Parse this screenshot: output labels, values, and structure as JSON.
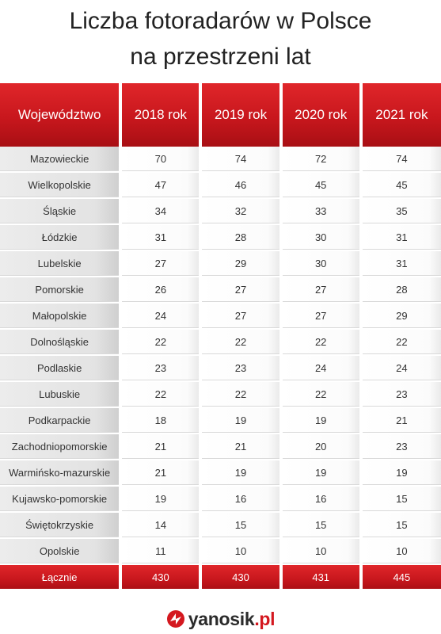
{
  "title": {
    "line1": "Liczba fotoradarów w Polsce",
    "line2": "na przestrzeni lat"
  },
  "table": {
    "headers": [
      "Województwo",
      "2018 rok",
      "2019 rok",
      "2020 rok",
      "2021 rok"
    ],
    "rows": [
      {
        "name": "Mazowieckie",
        "values": [
          "70",
          "74",
          "72",
          "74"
        ]
      },
      {
        "name": "Wielkopolskie",
        "values": [
          "47",
          "46",
          "45",
          "45"
        ]
      },
      {
        "name": "Śląskie",
        "values": [
          "34",
          "32",
          "33",
          "35"
        ]
      },
      {
        "name": "Łódzkie",
        "values": [
          "31",
          "28",
          "30",
          "31"
        ]
      },
      {
        "name": "Lubelskie",
        "values": [
          "27",
          "29",
          "30",
          "31"
        ]
      },
      {
        "name": "Pomorskie",
        "values": [
          "26",
          "27",
          "27",
          "28"
        ]
      },
      {
        "name": "Małopolskie",
        "values": [
          "24",
          "27",
          "27",
          "29"
        ]
      },
      {
        "name": "Dolnośląskie",
        "values": [
          "22",
          "22",
          "22",
          "22"
        ]
      },
      {
        "name": "Podlaskie",
        "values": [
          "23",
          "23",
          "24",
          "24"
        ]
      },
      {
        "name": "Lubuskie",
        "values": [
          "22",
          "22",
          "22",
          "23"
        ]
      },
      {
        "name": "Podkarpackie",
        "values": [
          "18",
          "19",
          "19",
          "21"
        ]
      },
      {
        "name": "Zachodniopomorskie",
        "values": [
          "21",
          "21",
          "20",
          "23"
        ]
      },
      {
        "name": "Warmińsko-mazurskie",
        "values": [
          "21",
          "19",
          "19",
          "19"
        ]
      },
      {
        "name": "Kujawsko-pomorskie",
        "values": [
          "19",
          "16",
          "16",
          "15"
        ]
      },
      {
        "name": "Świętokrzyskie",
        "values": [
          "14",
          "15",
          "15",
          "15"
        ]
      },
      {
        "name": "Opolskie",
        "values": [
          "11",
          "10",
          "10",
          "10"
        ]
      }
    ],
    "total": {
      "name": "Łącznie",
      "values": [
        "430",
        "430",
        "431",
        "445"
      ]
    }
  },
  "brand": {
    "name": "yanosik",
    "tld": ".pl",
    "accent_color": "#d4181f",
    "logo_icon": "yanosik-logo-icon"
  }
}
